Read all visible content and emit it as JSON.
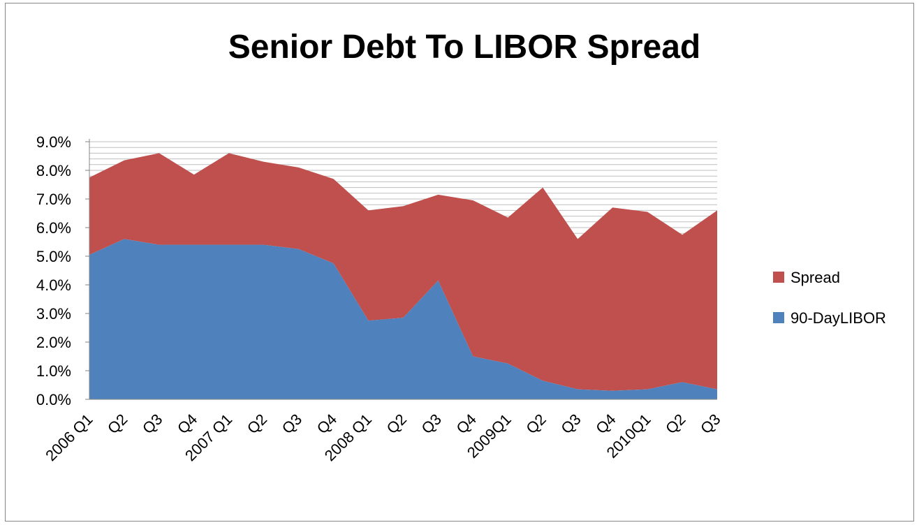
{
  "chart_data": {
    "type": "area",
    "stacked": true,
    "title": "Senior Debt To LIBOR Spread",
    "xlabel": "",
    "ylabel": "",
    "categories": [
      "2006 Q1",
      "Q2",
      "Q3",
      "Q4",
      "2007 Q1",
      "Q2",
      "Q3",
      "Q4",
      "2008 Q1",
      "Q2",
      "Q3",
      "Q4",
      "2009Q1",
      "Q2",
      "Q3",
      "Q4",
      "2010Q1",
      "Q2",
      "Q3"
    ],
    "x_tick_labels": [
      "2006 Q1",
      "Q2",
      "Q3",
      "Q4",
      "2007 Q1",
      "Q2",
      "Q3",
      "Q4",
      "2008 Q1",
      "Q2",
      "Q3",
      "Q4",
      "2009Q1",
      "Q2",
      "Q3",
      "Q4",
      "2010Q1",
      "Q2",
      "Q3"
    ],
    "series": [
      {
        "name": "90-DayLIBOR",
        "color": "#4F81BD",
        "values": [
          5.05,
          5.6,
          5.4,
          5.4,
          5.4,
          5.4,
          5.25,
          4.75,
          2.75,
          2.85,
          4.15,
          1.5,
          1.25,
          0.65,
          0.35,
          0.3,
          0.35,
          0.6,
          0.35
        ]
      },
      {
        "name": "Spread",
        "color": "#C0504D",
        "values": [
          2.7,
          2.75,
          3.2,
          2.45,
          3.2,
          2.9,
          2.85,
          2.95,
          3.85,
          3.9,
          3.0,
          5.45,
          5.1,
          6.75,
          5.25,
          6.4,
          6.2,
          5.15,
          6.25
        ]
      }
    ],
    "ylim": [
      0,
      9
    ],
    "y_ticks": [
      "0.0%",
      "1.0%",
      "2.0%",
      "3.0%",
      "4.0%",
      "5.0%",
      "6.0%",
      "7.0%",
      "8.0%",
      "9.0%"
    ],
    "grid": "horizontal, major and minor",
    "legend_position": "right",
    "legend": [
      "Spread",
      "90-DayLIBOR"
    ]
  }
}
